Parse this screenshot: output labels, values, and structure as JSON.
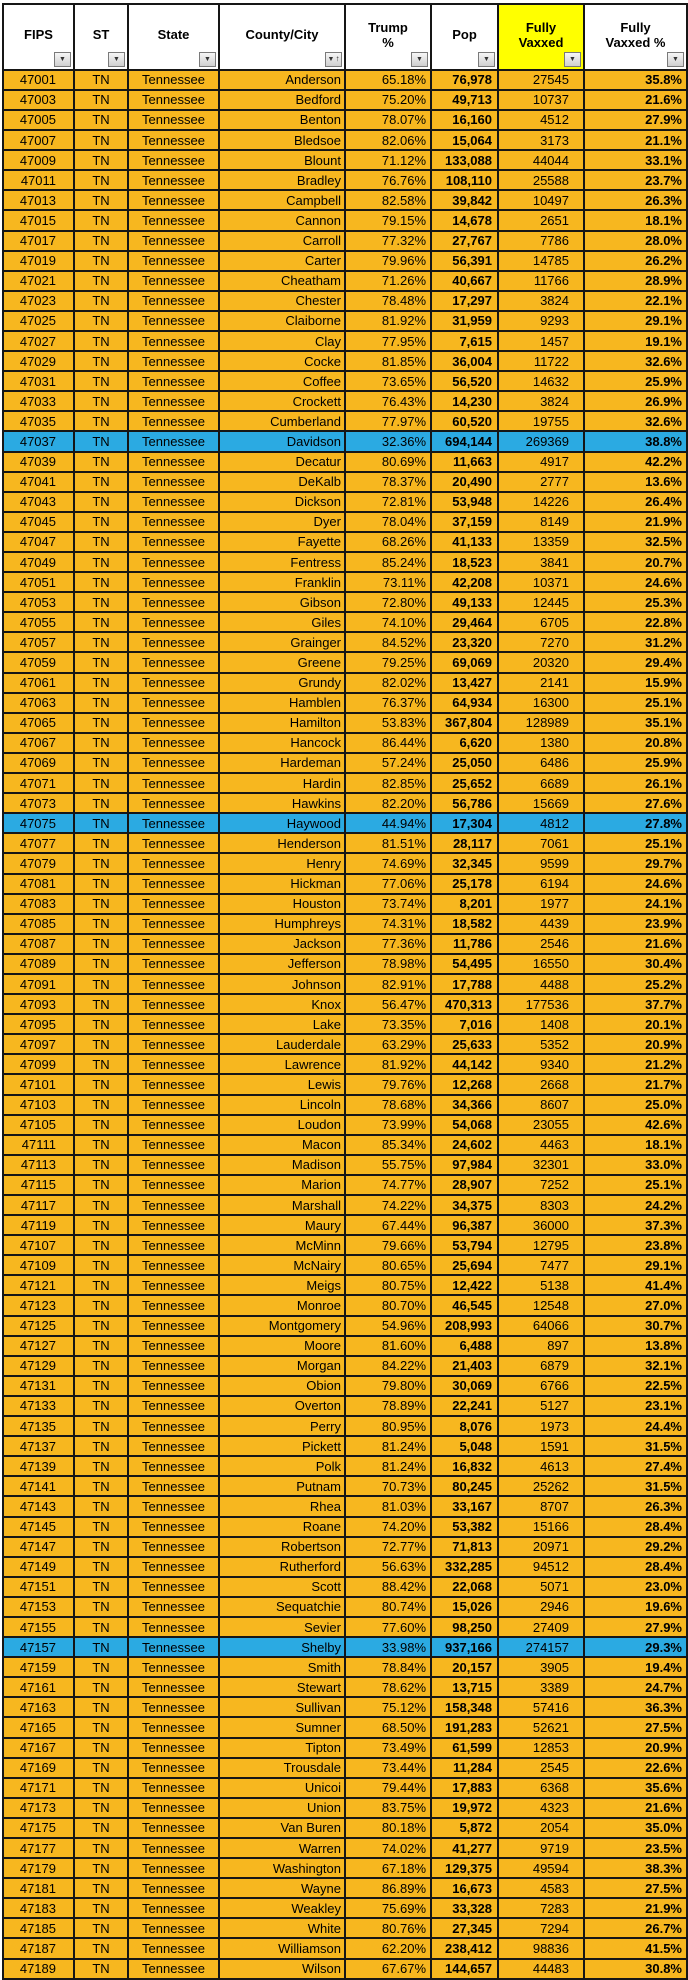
{
  "colors": {
    "row_orange": "#F7B71F",
    "row_highlight_cyan": "#2BAAE2",
    "header_yellow": "#FFFF00",
    "header_bg": "#FFFFFF",
    "grid_black": "#161616",
    "text_black": "#000000"
  },
  "icons": {
    "filter_dropdown": "▼",
    "sort_ascending": "↑"
  },
  "table": {
    "columns": [
      {
        "label": "FIPS",
        "filter": "dropdown"
      },
      {
        "label": "ST",
        "filter": "dropdown"
      },
      {
        "label": "State",
        "filter": "dropdown"
      },
      {
        "label": "County/City",
        "filter": "dropdown-sorted-ascending"
      },
      {
        "label": "Trump\n%",
        "filter": "dropdown"
      },
      {
        "label": "Pop",
        "filter": "dropdown"
      },
      {
        "label": "Fully\nVaxxed",
        "filter": "dropdown",
        "highlight": "#FFFF00"
      },
      {
        "label": "Fully\nVaxxed %",
        "filter": "dropdown"
      }
    ],
    "state_abbr": "TN",
    "state_name": "Tennessee",
    "row_format": [
      "fips",
      "county",
      "trump_pct",
      "pop",
      "fully_vaxxed",
      "fully_vaxxed_pct"
    ],
    "highlighted_fips": [
      "47037",
      "47075",
      "47157"
    ],
    "rows": [
      [
        "47001",
        "Anderson",
        "65.18%",
        "76,978",
        "27545",
        "35.8%"
      ],
      [
        "47003",
        "Bedford",
        "75.20%",
        "49,713",
        "10737",
        "21.6%"
      ],
      [
        "47005",
        "Benton",
        "78.07%",
        "16,160",
        "4512",
        "27.9%"
      ],
      [
        "47007",
        "Bledsoe",
        "82.06%",
        "15,064",
        "3173",
        "21.1%"
      ],
      [
        "47009",
        "Blount",
        "71.12%",
        "133,088",
        "44044",
        "33.1%"
      ],
      [
        "47011",
        "Bradley",
        "76.76%",
        "108,110",
        "25588",
        "23.7%"
      ],
      [
        "47013",
        "Campbell",
        "82.58%",
        "39,842",
        "10497",
        "26.3%"
      ],
      [
        "47015",
        "Cannon",
        "79.15%",
        "14,678",
        "2651",
        "18.1%"
      ],
      [
        "47017",
        "Carroll",
        "77.32%",
        "27,767",
        "7786",
        "28.0%"
      ],
      [
        "47019",
        "Carter",
        "79.96%",
        "56,391",
        "14785",
        "26.2%"
      ],
      [
        "47021",
        "Cheatham",
        "71.26%",
        "40,667",
        "11766",
        "28.9%"
      ],
      [
        "47023",
        "Chester",
        "78.48%",
        "17,297",
        "3824",
        "22.1%"
      ],
      [
        "47025",
        "Claiborne",
        "81.92%",
        "31,959",
        "9293",
        "29.1%"
      ],
      [
        "47027",
        "Clay",
        "77.95%",
        "7,615",
        "1457",
        "19.1%"
      ],
      [
        "47029",
        "Cocke",
        "81.85%",
        "36,004",
        "11722",
        "32.6%"
      ],
      [
        "47031",
        "Coffee",
        "73.65%",
        "56,520",
        "14632",
        "25.9%"
      ],
      [
        "47033",
        "Crockett",
        "76.43%",
        "14,230",
        "3824",
        "26.9%"
      ],
      [
        "47035",
        "Cumberland",
        "77.97%",
        "60,520",
        "19755",
        "32.6%"
      ],
      [
        "47037",
        "Davidson",
        "32.36%",
        "694,144",
        "269369",
        "38.8%"
      ],
      [
        "47039",
        "Decatur",
        "80.69%",
        "11,663",
        "4917",
        "42.2%"
      ],
      [
        "47041",
        "DeKalb",
        "78.37%",
        "20,490",
        "2777",
        "13.6%"
      ],
      [
        "47043",
        "Dickson",
        "72.81%",
        "53,948",
        "14226",
        "26.4%"
      ],
      [
        "47045",
        "Dyer",
        "78.04%",
        "37,159",
        "8149",
        "21.9%"
      ],
      [
        "47047",
        "Fayette",
        "68.26%",
        "41,133",
        "13359",
        "32.5%"
      ],
      [
        "47049",
        "Fentress",
        "85.24%",
        "18,523",
        "3841",
        "20.7%"
      ],
      [
        "47051",
        "Franklin",
        "73.11%",
        "42,208",
        "10371",
        "24.6%"
      ],
      [
        "47053",
        "Gibson",
        "72.80%",
        "49,133",
        "12445",
        "25.3%"
      ],
      [
        "47055",
        "Giles",
        "74.10%",
        "29,464",
        "6705",
        "22.8%"
      ],
      [
        "47057",
        "Grainger",
        "84.52%",
        "23,320",
        "7270",
        "31.2%"
      ],
      [
        "47059",
        "Greene",
        "79.25%",
        "69,069",
        "20320",
        "29.4%"
      ],
      [
        "47061",
        "Grundy",
        "82.02%",
        "13,427",
        "2141",
        "15.9%"
      ],
      [
        "47063",
        "Hamblen",
        "76.37%",
        "64,934",
        "16300",
        "25.1%"
      ],
      [
        "47065",
        "Hamilton",
        "53.83%",
        "367,804",
        "128989",
        "35.1%"
      ],
      [
        "47067",
        "Hancock",
        "86.44%",
        "6,620",
        "1380",
        "20.8%"
      ],
      [
        "47069",
        "Hardeman",
        "57.24%",
        "25,050",
        "6486",
        "25.9%"
      ],
      [
        "47071",
        "Hardin",
        "82.85%",
        "25,652",
        "6689",
        "26.1%"
      ],
      [
        "47073",
        "Hawkins",
        "82.20%",
        "56,786",
        "15669",
        "27.6%"
      ],
      [
        "47075",
        "Haywood",
        "44.94%",
        "17,304",
        "4812",
        "27.8%"
      ],
      [
        "47077",
        "Henderson",
        "81.51%",
        "28,117",
        "7061",
        "25.1%"
      ],
      [
        "47079",
        "Henry",
        "74.69%",
        "32,345",
        "9599",
        "29.7%"
      ],
      [
        "47081",
        "Hickman",
        "77.06%",
        "25,178",
        "6194",
        "24.6%"
      ],
      [
        "47083",
        "Houston",
        "73.74%",
        "8,201",
        "1977",
        "24.1%"
      ],
      [
        "47085",
        "Humphreys",
        "74.31%",
        "18,582",
        "4439",
        "23.9%"
      ],
      [
        "47087",
        "Jackson",
        "77.36%",
        "11,786",
        "2546",
        "21.6%"
      ],
      [
        "47089",
        "Jefferson",
        "78.98%",
        "54,495",
        "16550",
        "30.4%"
      ],
      [
        "47091",
        "Johnson",
        "82.91%",
        "17,788",
        "4488",
        "25.2%"
      ],
      [
        "47093",
        "Knox",
        "56.47%",
        "470,313",
        "177536",
        "37.7%"
      ],
      [
        "47095",
        "Lake",
        "73.35%",
        "7,016",
        "1408",
        "20.1%"
      ],
      [
        "47097",
        "Lauderdale",
        "63.29%",
        "25,633",
        "5352",
        "20.9%"
      ],
      [
        "47099",
        "Lawrence",
        "81.92%",
        "44,142",
        "9340",
        "21.2%"
      ],
      [
        "47101",
        "Lewis",
        "79.76%",
        "12,268",
        "2668",
        "21.7%"
      ],
      [
        "47103",
        "Lincoln",
        "78.68%",
        "34,366",
        "8607",
        "25.0%"
      ],
      [
        "47105",
        "Loudon",
        "73.99%",
        "54,068",
        "23055",
        "42.6%"
      ],
      [
        "47111",
        "Macon",
        "85.34%",
        "24,602",
        "4463",
        "18.1%"
      ],
      [
        "47113",
        "Madison",
        "55.75%",
        "97,984",
        "32301",
        "33.0%"
      ],
      [
        "47115",
        "Marion",
        "74.77%",
        "28,907",
        "7252",
        "25.1%"
      ],
      [
        "47117",
        "Marshall",
        "74.22%",
        "34,375",
        "8303",
        "24.2%"
      ],
      [
        "47119",
        "Maury",
        "67.44%",
        "96,387",
        "36000",
        "37.3%"
      ],
      [
        "47107",
        "McMinn",
        "79.66%",
        "53,794",
        "12795",
        "23.8%"
      ],
      [
        "47109",
        "McNairy",
        "80.65%",
        "25,694",
        "7477",
        "29.1%"
      ],
      [
        "47121",
        "Meigs",
        "80.75%",
        "12,422",
        "5138",
        "41.4%"
      ],
      [
        "47123",
        "Monroe",
        "80.70%",
        "46,545",
        "12548",
        "27.0%"
      ],
      [
        "47125",
        "Montgomery",
        "54.96%",
        "208,993",
        "64066",
        "30.7%"
      ],
      [
        "47127",
        "Moore",
        "81.60%",
        "6,488",
        "897",
        "13.8%"
      ],
      [
        "47129",
        "Morgan",
        "84.22%",
        "21,403",
        "6879",
        "32.1%"
      ],
      [
        "47131",
        "Obion",
        "79.80%",
        "30,069",
        "6766",
        "22.5%"
      ],
      [
        "47133",
        "Overton",
        "78.89%",
        "22,241",
        "5127",
        "23.1%"
      ],
      [
        "47135",
        "Perry",
        "80.95%",
        "8,076",
        "1973",
        "24.4%"
      ],
      [
        "47137",
        "Pickett",
        "81.24%",
        "5,048",
        "1591",
        "31.5%"
      ],
      [
        "47139",
        "Polk",
        "81.24%",
        "16,832",
        "4613",
        "27.4%"
      ],
      [
        "47141",
        "Putnam",
        "70.73%",
        "80,245",
        "25262",
        "31.5%"
      ],
      [
        "47143",
        "Rhea",
        "81.03%",
        "33,167",
        "8707",
        "26.3%"
      ],
      [
        "47145",
        "Roane",
        "74.20%",
        "53,382",
        "15166",
        "28.4%"
      ],
      [
        "47147",
        "Robertson",
        "72.77%",
        "71,813",
        "20971",
        "29.2%"
      ],
      [
        "47149",
        "Rutherford",
        "56.63%",
        "332,285",
        "94512",
        "28.4%"
      ],
      [
        "47151",
        "Scott",
        "88.42%",
        "22,068",
        "5071",
        "23.0%"
      ],
      [
        "47153",
        "Sequatchie",
        "80.74%",
        "15,026",
        "2946",
        "19.6%"
      ],
      [
        "47155",
        "Sevier",
        "77.60%",
        "98,250",
        "27409",
        "27.9%"
      ],
      [
        "47157",
        "Shelby",
        "33.98%",
        "937,166",
        "274157",
        "29.3%"
      ],
      [
        "47159",
        "Smith",
        "78.84%",
        "20,157",
        "3905",
        "19.4%"
      ],
      [
        "47161",
        "Stewart",
        "78.62%",
        "13,715",
        "3389",
        "24.7%"
      ],
      [
        "47163",
        "Sullivan",
        "75.12%",
        "158,348",
        "57416",
        "36.3%"
      ],
      [
        "47165",
        "Sumner",
        "68.50%",
        "191,283",
        "52621",
        "27.5%"
      ],
      [
        "47167",
        "Tipton",
        "73.49%",
        "61,599",
        "12853",
        "20.9%"
      ],
      [
        "47169",
        "Trousdale",
        "73.44%",
        "11,284",
        "2545",
        "22.6%"
      ],
      [
        "47171",
        "Unicoi",
        "79.44%",
        "17,883",
        "6368",
        "35.6%"
      ],
      [
        "47173",
        "Union",
        "83.75%",
        "19,972",
        "4323",
        "21.6%"
      ],
      [
        "47175",
        "Van Buren",
        "80.18%",
        "5,872",
        "2054",
        "35.0%"
      ],
      [
        "47177",
        "Warren",
        "74.02%",
        "41,277",
        "9719",
        "23.5%"
      ],
      [
        "47179",
        "Washington",
        "67.18%",
        "129,375",
        "49594",
        "38.3%"
      ],
      [
        "47181",
        "Wayne",
        "86.89%",
        "16,673",
        "4583",
        "27.5%"
      ],
      [
        "47183",
        "Weakley",
        "75.69%",
        "33,328",
        "7283",
        "21.9%"
      ],
      [
        "47185",
        "White",
        "80.76%",
        "27,345",
        "7294",
        "26.7%"
      ],
      [
        "47187",
        "Williamson",
        "62.20%",
        "238,412",
        "98836",
        "41.5%"
      ],
      [
        "47189",
        "Wilson",
        "67.67%",
        "144,657",
        "44483",
        "30.8%"
      ]
    ]
  }
}
